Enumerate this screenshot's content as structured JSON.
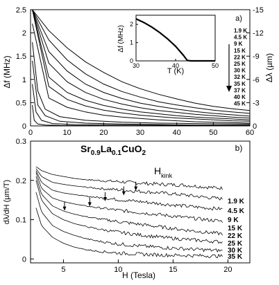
{
  "chart_data": [
    {
      "panel": "a",
      "type": "line",
      "panel_label": "a)",
      "xlabel": "",
      "ylabel": "Δf (MHz)",
      "y2label": "Δλ (µm)",
      "xlim": [
        0,
        60
      ],
      "ylim": [
        0,
        2.5
      ],
      "y2lim": [
        0,
        -15
      ],
      "x_ticks": [
        "0",
        "10",
        "20",
        "30",
        "40",
        "50",
        "60"
      ],
      "y_ticks": [
        "0",
        "0.5",
        "1",
        "1.5",
        "2",
        "2.5"
      ],
      "y2_ticks": [
        "0",
        "-3",
        "-6",
        "-9",
        "-12",
        "-15"
      ],
      "legend": [
        "1.9 K",
        "4.5 K",
        "9 K",
        "15 K",
        "22 K",
        "25 K",
        "30 K",
        "32 K",
        "35 K",
        "37 K",
        "40 K",
        "45 K"
      ],
      "series": [
        {
          "x": [
            0.5,
            5,
            10,
            15,
            20,
            25,
            30,
            35,
            40,
            45,
            50,
            55,
            60
          ],
          "y": [
            2.5,
            2.05,
            1.68,
            1.38,
            1.15,
            0.95,
            0.8,
            0.68,
            0.58,
            0.49,
            0.42,
            0.37,
            0.33
          ]
        },
        {
          "x": [
            0.5,
            5,
            10,
            15,
            20,
            25,
            30,
            35,
            40,
            45,
            50,
            55,
            60
          ],
          "y": [
            2.5,
            1.85,
            1.42,
            1.12,
            0.9,
            0.74,
            0.62,
            0.52,
            0.45,
            0.39,
            0.34,
            0.3,
            0.27
          ]
        },
        {
          "x": [
            0.5,
            5,
            10,
            15,
            20,
            25,
            30,
            35,
            40,
            45,
            50,
            55,
            60
          ],
          "y": [
            2.5,
            1.6,
            1.18,
            0.9,
            0.72,
            0.59,
            0.49,
            0.42,
            0.36,
            0.31,
            0.27,
            0.24,
            0.21
          ]
        },
        {
          "x": [
            0.5,
            5,
            10,
            15,
            20,
            25,
            30,
            35,
            40,
            45,
            50,
            55,
            60
          ],
          "y": [
            2.5,
            1.35,
            0.95,
            0.72,
            0.57,
            0.47,
            0.39,
            0.33,
            0.29,
            0.25,
            0.22,
            0.19,
            0.17
          ]
        },
        {
          "x": [
            0.5,
            5,
            10,
            15,
            20,
            25,
            30,
            35,
            40,
            45,
            50,
            55,
            60
          ],
          "y": [
            2.5,
            1.05,
            0.72,
            0.55,
            0.44,
            0.36,
            0.3,
            0.26,
            0.22,
            0.19,
            0.17,
            0.15,
            0.13
          ]
        },
        {
          "x": [
            0.5,
            5,
            10,
            15,
            20,
            25,
            30,
            35,
            40,
            45,
            50,
            55,
            60
          ],
          "y": [
            2.5,
            0.85,
            0.57,
            0.43,
            0.34,
            0.28,
            0.23,
            0.2,
            0.17,
            0.15,
            0.13,
            0.11,
            0.1
          ]
        },
        {
          "x": [
            0.5,
            5,
            10,
            15,
            20,
            25,
            30,
            35,
            40,
            45,
            50,
            55,
            60
          ],
          "y": [
            2.2,
            0.6,
            0.4,
            0.3,
            0.23,
            0.19,
            0.16,
            0.13,
            0.11,
            0.09,
            0.08,
            0.07,
            0.06
          ]
        },
        {
          "x": [
            0.5,
            2,
            4,
            8,
            15,
            25,
            35,
            45,
            60
          ],
          "y": [
            1.8,
            0.75,
            0.36,
            0.2,
            0.12,
            0.08,
            0.06,
            0.05,
            0.04
          ]
        },
        {
          "x": [
            0.5,
            2,
            4,
            8,
            15,
            25,
            35,
            45,
            60
          ],
          "y": [
            1.4,
            0.45,
            0.22,
            0.1,
            0.06,
            0.04,
            0.03,
            0.02,
            0.02
          ]
        },
        {
          "x": [
            0.5,
            1.5,
            3,
            6,
            12,
            25,
            40,
            60
          ],
          "y": [
            0.9,
            0.3,
            0.12,
            0.05,
            0.03,
            0.02,
            0.01,
            0.01
          ]
        },
        {
          "x": [
            0.5,
            1,
            2,
            4,
            8,
            20,
            60
          ],
          "y": [
            0.45,
            0.12,
            0.04,
            0.02,
            0.01,
            0.005,
            0.0
          ]
        },
        {
          "x": [
            0,
            60
          ],
          "y": [
            0.0,
            0.0
          ]
        }
      ],
      "inset": {
        "type": "line",
        "xlabel": "T (K)",
        "ylabel": "Δf (MHz)",
        "xlim": [
          30,
          50
        ],
        "ylim": [
          0,
          2.5
        ],
        "x_ticks": [
          "30",
          "40",
          "50"
        ],
        "y_ticks": [
          "0",
          "1",
          "2"
        ],
        "x": [
          30,
          32,
          34,
          36,
          38,
          40,
          41,
          42,
          42.5,
          43,
          44,
          46,
          48,
          50
        ],
        "y": [
          2.3,
          2.1,
          1.85,
          1.55,
          1.2,
          0.8,
          0.55,
          0.3,
          0.15,
          0.02,
          0.0,
          0.0,
          0.0,
          0.0
        ]
      }
    },
    {
      "panel": "b",
      "type": "line",
      "panel_label": "b)",
      "title_parts": [
        "Sr",
        "0.9",
        "La",
        "0.1",
        "CuO",
        "2"
      ],
      "xlabel": "H (Tesla)",
      "ylabel": "dλ/dH (µm/T)",
      "xlim": [
        2,
        22
      ],
      "ylim": [
        -0.01,
        0.3
      ],
      "x_ticks": [
        "5",
        "10",
        "15",
        "20"
      ],
      "x_tick_values": [
        5,
        10,
        15,
        20
      ],
      "y_ticks": [
        "0",
        "0.1",
        "0.2",
        "0.3"
      ],
      "y_tick_values": [
        0,
        0.1,
        0.2,
        0.3
      ],
      "annotation_main": "H",
      "annotation_sub": "kink",
      "legend": [
        "1.9 K",
        "4.5 K",
        "9 K",
        "15 K",
        "22 K",
        "25 K",
        "30 K",
        "35 K"
      ],
      "series": [
        {
          "x": [
            2.5,
            3,
            4,
            5,
            6,
            7,
            8,
            10,
            12,
            14,
            16,
            18,
            19.5
          ],
          "y": [
            0.235,
            0.225,
            0.215,
            0.21,
            0.205,
            0.202,
            0.2,
            0.197,
            0.193,
            0.19,
            0.188,
            0.183,
            0.18
          ]
        },
        {
          "x": [
            2.5,
            3,
            4,
            5,
            6,
            7,
            8,
            10,
            12,
            14,
            16,
            18,
            19.5
          ],
          "y": [
            0.23,
            0.21,
            0.195,
            0.19,
            0.186,
            0.183,
            0.18,
            0.176,
            0.172,
            0.168,
            0.163,
            0.157,
            0.153
          ]
        },
        {
          "x": [
            2.5,
            3,
            4,
            5,
            6,
            7,
            8,
            10,
            12,
            14,
            16,
            18,
            19.5
          ],
          "y": [
            0.225,
            0.195,
            0.175,
            0.168,
            0.164,
            0.16,
            0.157,
            0.151,
            0.146,
            0.14,
            0.135,
            0.13,
            0.127
          ]
        },
        {
          "x": [
            2.5,
            3,
            4,
            5,
            6,
            7,
            8,
            10,
            12,
            14,
            16,
            18,
            19.5
          ],
          "y": [
            0.22,
            0.18,
            0.155,
            0.146,
            0.14,
            0.135,
            0.131,
            0.124,
            0.118,
            0.112,
            0.106,
            0.1,
            0.096
          ]
        },
        {
          "x": [
            2.5,
            3,
            4,
            5,
            6,
            7,
            8,
            10,
            12,
            14,
            16,
            18,
            19.5
          ],
          "y": [
            0.21,
            0.165,
            0.135,
            0.122,
            0.114,
            0.108,
            0.103,
            0.095,
            0.088,
            0.081,
            0.074,
            0.068,
            0.064
          ]
        },
        {
          "x": [
            2.5,
            3,
            4,
            5,
            6,
            7,
            8,
            10,
            12,
            14,
            16,
            18,
            19.5
          ],
          "y": [
            0.2,
            0.15,
            0.115,
            0.1,
            0.09,
            0.083,
            0.077,
            0.068,
            0.061,
            0.055,
            0.05,
            0.046,
            0.043
          ]
        },
        {
          "x": [
            2.5,
            3,
            4,
            5,
            6,
            7,
            8,
            10,
            12,
            14,
            16,
            18,
            19.5
          ],
          "y": [
            0.17,
            0.12,
            0.085,
            0.07,
            0.06,
            0.052,
            0.046,
            0.038,
            0.033,
            0.029,
            0.026,
            0.023,
            0.021
          ]
        },
        {
          "x": [
            2.5,
            3,
            4,
            5,
            6,
            7,
            8,
            10,
            12,
            14,
            16,
            18,
            19.5
          ],
          "y": [
            0.13,
            0.085,
            0.055,
            0.04,
            0.03,
            0.024,
            0.02,
            0.015,
            0.012,
            0.01,
            0.009,
            0.008,
            0.007
          ]
        }
      ],
      "kinks": [
        {
          "x": 11.6,
          "y": 0.172
        },
        {
          "x": 10.5,
          "y": 0.16
        },
        {
          "x": 8.8,
          "y": 0.145
        },
        {
          "x": 7.4,
          "y": 0.132
        },
        {
          "x": 5.1,
          "y": 0.121
        }
      ]
    }
  ]
}
